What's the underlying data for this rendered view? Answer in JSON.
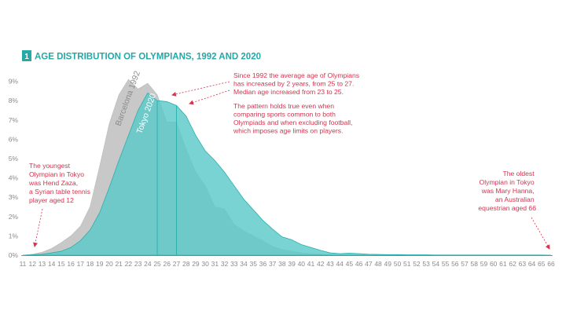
{
  "chart_data": {
    "type": "area",
    "section_number": "1",
    "title": "AGE DISTRIBUTION OF OLYMPIANS, 1992 AND 2020",
    "xlabel": "",
    "ylabel": "",
    "x": [
      11,
      12,
      13,
      14,
      15,
      16,
      17,
      18,
      19,
      20,
      21,
      22,
      23,
      24,
      25,
      26,
      27,
      28,
      29,
      30,
      31,
      32,
      33,
      34,
      35,
      36,
      37,
      38,
      39,
      40,
      41,
      42,
      43,
      44,
      45,
      46,
      47,
      48,
      49,
      50,
      51,
      52,
      53,
      54,
      55,
      56,
      57,
      58,
      59,
      60,
      61,
      62,
      63,
      64,
      65,
      66
    ],
    "xlim": [
      11,
      66
    ],
    "ylim": [
      0,
      10
    ],
    "y_ticks": [
      0,
      1,
      2,
      3,
      4,
      5,
      6,
      7,
      8,
      9
    ],
    "y_tick_labels": [
      "0%",
      "1%",
      "2%",
      "3%",
      "4%",
      "5%",
      "6%",
      "7%",
      "8%",
      "9%"
    ],
    "series": [
      {
        "name": "Barcelona 1992",
        "color": "#c8c8c8",
        "median": 23,
        "values": [
          0,
          0.05,
          0.15,
          0.35,
          0.65,
          1.0,
          1.5,
          2.5,
          4.6,
          6.8,
          8.3,
          9.1,
          8.6,
          8.9,
          8.3,
          6.9,
          6.9,
          5.5,
          4.3,
          3.6,
          2.5,
          2.4,
          1.6,
          1.25,
          1.0,
          0.75,
          0.45,
          0.3,
          0.2,
          0.12,
          0.08,
          0.05,
          0.02,
          0.01,
          0.01,
          0.01,
          0,
          0,
          0,
          0,
          0,
          0,
          0,
          0,
          0,
          0,
          0,
          0,
          0,
          0,
          0,
          0,
          0,
          0,
          0,
          0
        ]
      },
      {
        "name": "Tokyo 2020",
        "color": "#5cc9c9",
        "median": 25,
        "values": [
          0,
          0.02,
          0.05,
          0.12,
          0.2,
          0.4,
          0.75,
          1.3,
          2.2,
          3.5,
          4.9,
          6.2,
          7.5,
          8.4,
          8.0,
          7.95,
          7.75,
          7.2,
          6.2,
          5.4,
          4.9,
          4.3,
          3.6,
          2.9,
          2.35,
          1.8,
          1.35,
          0.95,
          0.8,
          0.55,
          0.4,
          0.25,
          0.12,
          0.08,
          0.1,
          0.08,
          0.05,
          0.04,
          0.03,
          0.03,
          0.02,
          0.02,
          0.02,
          0.01,
          0.01,
          0.01,
          0.01,
          0.01,
          0.01,
          0.01,
          0.01,
          0.01,
          0.01,
          0.01,
          0.01,
          0
        ]
      }
    ],
    "annotations": {
      "youngest": [
        "The youngest",
        "Olympian in Tokyo",
        "was Hend Zaza,",
        "a Syrian table tennis",
        "player aged 12"
      ],
      "oldest": [
        "The oldest",
        "Olympian in Tokyo",
        "was Mary Hanna,",
        "an Australian",
        "equestrian aged 66"
      ],
      "average": [
        "Since 1992 the average age of Olympians",
        "has increased by 2 years, from 25 to 27.",
        "Median age increased from 23 to 25."
      ],
      "pattern": [
        "The pattern holds true even when",
        "comparing sports common to both",
        "Olympiads and when excluding football,",
        "which imposes age limits on players."
      ]
    },
    "colors": {
      "accent": "#23a9a6",
      "annotation": "#d5334e",
      "tokyo_fill": "#5cc9c9",
      "tokyo_stroke": "#27b0ad",
      "barcelona_fill": "#c8c8c8",
      "barcelona_label": "#8c8c8c",
      "tokyo_label": "#ffffff",
      "tick": "#8a8a8a",
      "axis": "#6f6f6f"
    }
  }
}
